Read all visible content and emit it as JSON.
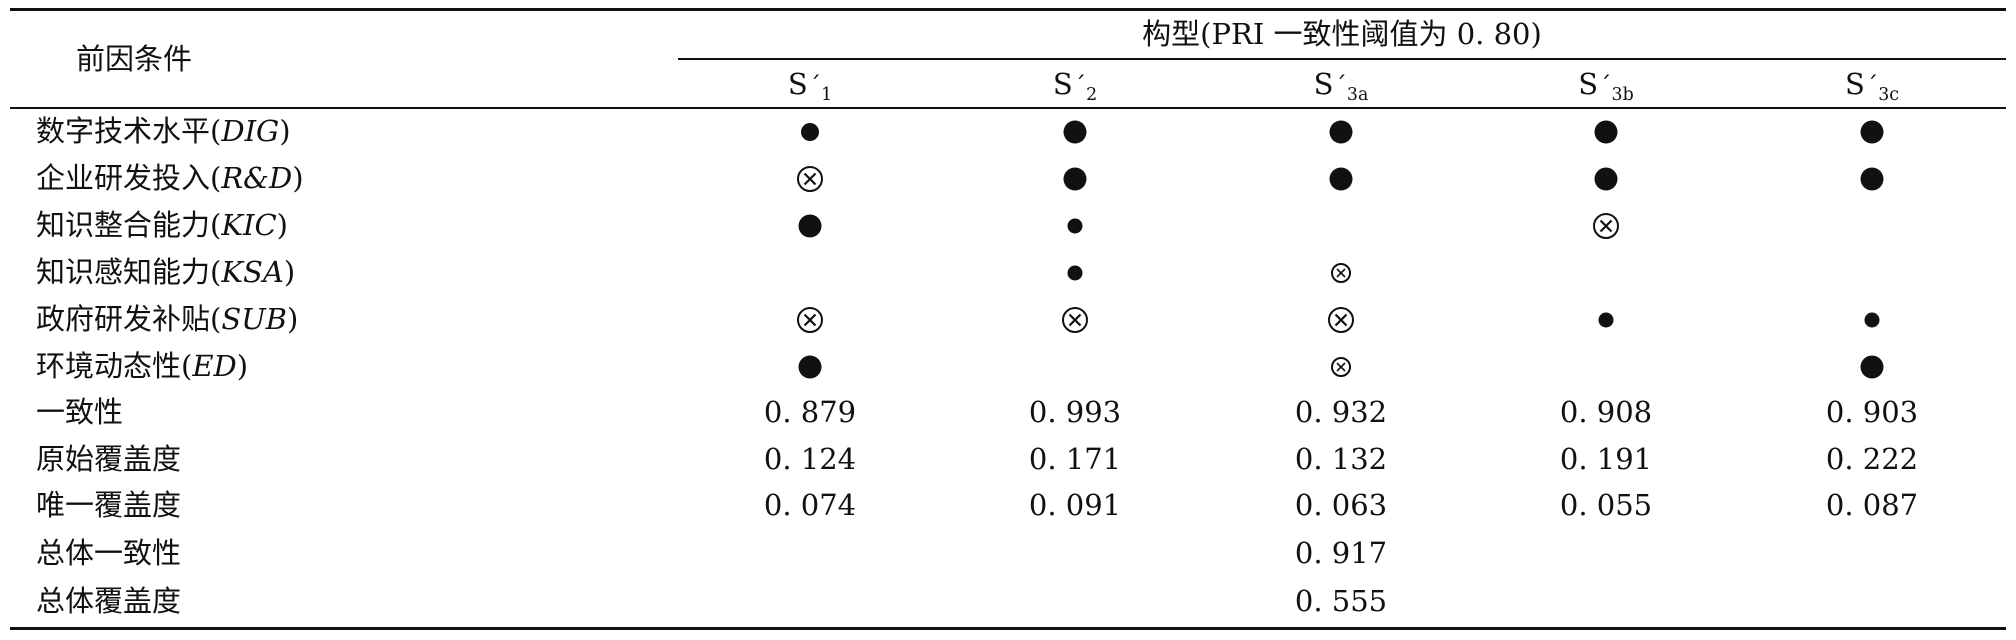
{
  "table": {
    "antecedent_header": "前因条件",
    "config_header": "构型(PRI 一致性阈值为 0. 80)",
    "columns": [
      {
        "base": "S",
        "prime": "´",
        "sub": "1"
      },
      {
        "base": "S",
        "prime": "´",
        "sub": "2"
      },
      {
        "base": "S",
        "prime": "´",
        "sub": "3a"
      },
      {
        "base": "S",
        "prime": "´",
        "sub": "3b"
      },
      {
        "base": "S",
        "prime": "´",
        "sub": "3c"
      }
    ],
    "condition_rows": [
      {
        "label": "数字技术水平",
        "code": "DIG",
        "symbols": [
          "core-present-small",
          "core-present",
          "core-present",
          "core-present",
          "core-present"
        ]
      },
      {
        "label": "企业研发投入",
        "code": "R&D",
        "symbols": [
          "core-absent",
          "core-present",
          "core-present",
          "core-present",
          "core-present"
        ]
      },
      {
        "label": "知识整合能力",
        "code": "KIC",
        "symbols": [
          "core-present",
          "peripheral-present",
          "",
          "core-absent",
          ""
        ]
      },
      {
        "label": "知识感知能力",
        "code": "KSA",
        "symbols": [
          "",
          "peripheral-present",
          "peripheral-absent",
          "",
          ""
        ]
      },
      {
        "label": "政府研发补贴",
        "code": "SUB",
        "symbols": [
          "core-absent",
          "core-absent",
          "core-absent",
          "peripheral-present",
          "peripheral-present"
        ]
      },
      {
        "label": "环境动态性",
        "code": "ED",
        "symbols": [
          "core-present",
          "",
          "peripheral-absent",
          "",
          "core-present"
        ]
      }
    ],
    "metric_rows": [
      {
        "label": "一致性",
        "values": [
          "0. 879",
          "0. 993",
          "0. 932",
          "0. 908",
          "0. 903"
        ]
      },
      {
        "label": "原始覆盖度",
        "values": [
          "0. 124",
          "0. 171",
          "0. 132",
          "0. 191",
          "0. 222"
        ]
      },
      {
        "label": "唯一覆盖度",
        "values": [
          "0. 074",
          "0. 091",
          "0. 063",
          "0. 055",
          "0. 087"
        ]
      }
    ],
    "overall_rows": [
      {
        "label": "总体一致性",
        "value": "0. 917"
      },
      {
        "label": "总体覆盖度",
        "value": "0. 555"
      }
    ]
  }
}
